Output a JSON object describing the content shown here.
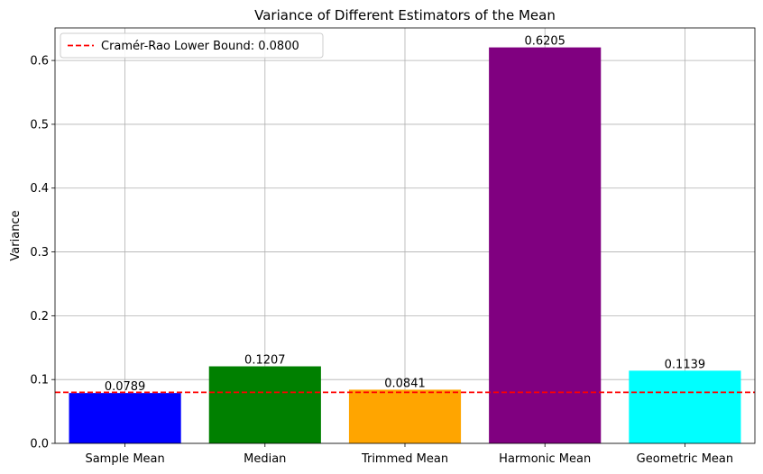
{
  "chart_data": {
    "type": "bar",
    "title": "Variance of Different Estimators of the Mean",
    "xlabel": "",
    "ylabel": "Variance",
    "categories": [
      "Sample Mean",
      "Median",
      "Trimmed Mean",
      "Harmonic Mean",
      "Geometric Mean"
    ],
    "values": [
      0.0789,
      0.1207,
      0.0841,
      0.6205,
      0.1139
    ],
    "value_labels": [
      "0.0789",
      "0.1207",
      "0.0841",
      "0.6205",
      "0.1139"
    ],
    "colors": [
      "#0000ff",
      "#008000",
      "#ffa500",
      "#800080",
      "#00ffff"
    ],
    "ylim": [
      0,
      0.651
    ],
    "yticks": [
      0.0,
      0.1,
      0.2,
      0.3,
      0.4,
      0.5,
      0.6
    ],
    "ytick_labels": [
      "0.0",
      "0.1",
      "0.2",
      "0.3",
      "0.4",
      "0.5",
      "0.6"
    ],
    "grid": true,
    "reference_line": {
      "value": 0.08,
      "label": "Cramér-Rao Lower Bound: 0.0800",
      "color": "#ff0000",
      "style": "dashed"
    },
    "legend": {
      "placement": "top-left",
      "entries": [
        "Cramér-Rao Lower Bound: 0.0800"
      ]
    }
  }
}
